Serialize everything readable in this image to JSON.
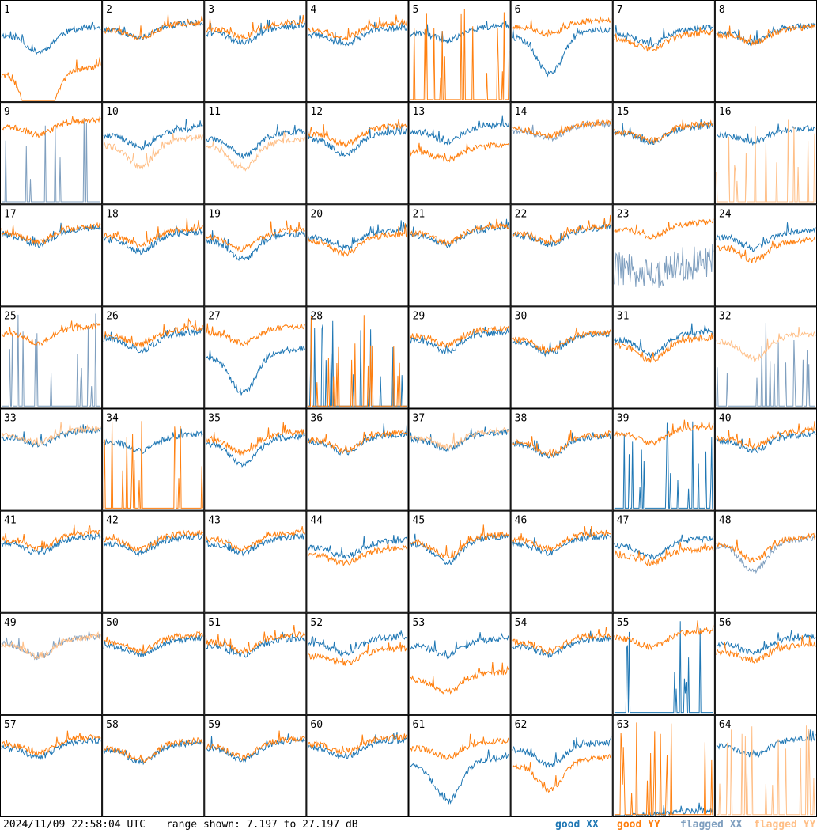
{
  "chart_data": {
    "type": "line",
    "grid": {
      "rows": 8,
      "cols": 8
    },
    "panels": [
      {
        "id": "1",
        "xx": "good",
        "yy": "good",
        "xx_level": 0.7,
        "yy_level": 0.3,
        "xx_dip": 0.2,
        "yy_dip": 0.7
      },
      {
        "id": "2",
        "xx": "good",
        "yy": "good",
        "xx_level": 0.75,
        "yy_level": 0.75,
        "xx_dip": 0.1,
        "yy_dip": 0.1
      },
      {
        "id": "3",
        "xx": "good",
        "yy": "good",
        "xx_level": 0.72,
        "yy_level": 0.76,
        "xx_dip": 0.12,
        "yy_dip": 0.1
      },
      {
        "id": "4",
        "xx": "good",
        "yy": "good",
        "xx_level": 0.7,
        "yy_level": 0.75,
        "xx_dip": 0.12,
        "yy_dip": 0.1
      },
      {
        "id": "5",
        "xx": "good",
        "yy": "good",
        "xx_level": 0.72,
        "yy_level": 0.02,
        "xx_dip": 0.1,
        "yy_dip": 0.0,
        "yy_spikes": true
      },
      {
        "id": "6",
        "xx": "good",
        "yy": "good",
        "xx_level": 0.68,
        "yy_level": 0.78,
        "xx_dip": 0.4,
        "yy_dip": 0.1
      },
      {
        "id": "7",
        "xx": "good",
        "yy": "good",
        "xx_level": 0.7,
        "yy_level": 0.65,
        "xx_dip": 0.12,
        "yy_dip": 0.12
      },
      {
        "id": "8",
        "xx": "good",
        "yy": "good",
        "xx_level": 0.72,
        "yy_level": 0.7,
        "xx_dip": 0.12,
        "yy_dip": 0.1
      },
      {
        "id": "9",
        "xx": "flagged",
        "yy": "good",
        "xx_level": 0.05,
        "yy_level": 0.8,
        "xx_dip": 0.0,
        "yy_dip": 0.1,
        "xx_spikes": true
      },
      {
        "id": "10",
        "xx": "good",
        "yy": "flagged",
        "xx_level": 0.72,
        "yy_level": 0.62,
        "xx_dip": 0.15,
        "yy_dip": 0.25
      },
      {
        "id": "11",
        "xx": "good",
        "yy": "flagged",
        "xx_level": 0.68,
        "yy_level": 0.6,
        "xx_dip": 0.2,
        "yy_dip": 0.25
      },
      {
        "id": "12",
        "xx": "good",
        "yy": "good",
        "xx_level": 0.68,
        "yy_level": 0.74,
        "xx_dip": 0.18,
        "yy_dip": 0.14
      },
      {
        "id": "13",
        "xx": "good",
        "yy": "good",
        "xx_level": 0.75,
        "yy_level": 0.55,
        "xx_dip": 0.12,
        "yy_dip": 0.1
      },
      {
        "id": "14",
        "xx": "flagged",
        "yy": "good",
        "xx_level": 0.76,
        "yy_level": 0.78,
        "xx_dip": 0.1,
        "yy_dip": 0.1
      },
      {
        "id": "15",
        "xx": "good",
        "yy": "good",
        "xx_level": 0.74,
        "yy_level": 0.76,
        "xx_dip": 0.12,
        "yy_dip": 0.12
      },
      {
        "id": "16",
        "xx": "good",
        "yy": "flagged",
        "xx_level": 0.72,
        "yy_level": 0.02,
        "xx_dip": 0.1,
        "yy_dip": 0.0,
        "yy_spikes": true
      },
      {
        "id": "17",
        "xx": "good",
        "yy": "good",
        "xx_level": 0.74,
        "yy_level": 0.76,
        "xx_dip": 0.12,
        "yy_dip": 0.12
      },
      {
        "id": "18",
        "xx": "good",
        "yy": "good",
        "xx_level": 0.7,
        "yy_level": 0.74,
        "xx_dip": 0.15,
        "yy_dip": 0.12
      },
      {
        "id": "19",
        "xx": "good",
        "yy": "good",
        "xx_level": 0.68,
        "yy_level": 0.72,
        "xx_dip": 0.22,
        "yy_dip": 0.14
      },
      {
        "id": "20",
        "xx": "good",
        "yy": "good",
        "xx_level": 0.72,
        "yy_level": 0.68,
        "xx_dip": 0.14,
        "yy_dip": 0.15
      },
      {
        "id": "21",
        "xx": "good",
        "yy": "good",
        "xx_level": 0.74,
        "yy_level": 0.76,
        "xx_dip": 0.12,
        "yy_dip": 0.12
      },
      {
        "id": "22",
        "xx": "good",
        "yy": "good",
        "xx_level": 0.74,
        "yy_level": 0.76,
        "xx_dip": 0.12,
        "yy_dip": 0.12
      },
      {
        "id": "23",
        "xx": "flagged",
        "yy": "good",
        "xx_level": 0.4,
        "yy_level": 0.8,
        "xx_dip": 0.1,
        "yy_dip": 0.1,
        "xx_noisy": true
      },
      {
        "id": "24",
        "xx": "good",
        "yy": "good",
        "xx_level": 0.72,
        "yy_level": 0.62,
        "xx_dip": 0.14,
        "yy_dip": 0.16
      },
      {
        "id": "25",
        "xx": "flagged",
        "yy": "good",
        "xx_level": 0.02,
        "yy_level": 0.78,
        "xx_dip": 0.0,
        "yy_dip": 0.12,
        "xx_spikes": true
      },
      {
        "id": "26",
        "xx": "good",
        "yy": "good",
        "xx_level": 0.72,
        "yy_level": 0.76,
        "xx_dip": 0.14,
        "yy_dip": 0.12
      },
      {
        "id": "27",
        "xx": "good",
        "yy": "good",
        "xx_level": 0.55,
        "yy_level": 0.78,
        "xx_dip": 0.4,
        "yy_dip": 0.12
      },
      {
        "id": "28",
        "xx": "good",
        "yy": "good",
        "xx_level": 0.02,
        "yy_level": 0.02,
        "xx_dip": 0.0,
        "yy_dip": 0.0,
        "xx_spikes": true,
        "yy_spikes": true
      },
      {
        "id": "29",
        "xx": "good",
        "yy": "good",
        "xx_level": 0.72,
        "yy_level": 0.76,
        "xx_dip": 0.15,
        "yy_dip": 0.12
      },
      {
        "id": "30",
        "xx": "good",
        "yy": "good",
        "xx_level": 0.7,
        "yy_level": 0.72,
        "xx_dip": 0.15,
        "yy_dip": 0.14
      },
      {
        "id": "31",
        "xx": "good",
        "yy": "good",
        "xx_level": 0.72,
        "yy_level": 0.66,
        "xx_dip": 0.18,
        "yy_dip": 0.18
      },
      {
        "id": "32",
        "xx": "flagged",
        "yy": "flagged",
        "xx_level": 0.02,
        "yy_level": 0.7,
        "xx_dip": 0.0,
        "yy_dip": 0.2,
        "xx_spikes": true
      },
      {
        "id": "33",
        "xx": "good",
        "yy": "flagged",
        "xx_level": 0.76,
        "yy_level": 0.78,
        "xx_dip": 0.1,
        "yy_dip": 0.1
      },
      {
        "id": "34",
        "xx": "good",
        "yy": "good",
        "xx_level": 0.72,
        "yy_level": 0.02,
        "xx_dip": 0.12,
        "yy_dip": 0.0,
        "yy_spikes": true
      },
      {
        "id": "35",
        "xx": "good",
        "yy": "good",
        "xx_level": 0.7,
        "yy_level": 0.74,
        "xx_dip": 0.24,
        "yy_dip": 0.16
      },
      {
        "id": "36",
        "xx": "good",
        "yy": "good",
        "xx_level": 0.72,
        "yy_level": 0.74,
        "xx_dip": 0.14,
        "yy_dip": 0.14
      },
      {
        "id": "37",
        "xx": "good",
        "yy": "flagged",
        "xx_level": 0.74,
        "yy_level": 0.76,
        "xx_dip": 0.12,
        "yy_dip": 0.12
      },
      {
        "id": "38",
        "xx": "good",
        "yy": "good",
        "xx_level": 0.7,
        "yy_level": 0.72,
        "xx_dip": 0.16,
        "yy_dip": 0.16
      },
      {
        "id": "39",
        "xx": "good",
        "yy": "good",
        "xx_level": 0.02,
        "yy_level": 0.8,
        "xx_dip": 0.0,
        "yy_dip": 0.12,
        "xx_spikes": true
      },
      {
        "id": "40",
        "xx": "good",
        "yy": "good",
        "xx_level": 0.72,
        "yy_level": 0.76,
        "xx_dip": 0.12,
        "yy_dip": 0.12
      },
      {
        "id": "41",
        "xx": "good",
        "yy": "good",
        "xx_level": 0.72,
        "yy_level": 0.76,
        "xx_dip": 0.12,
        "yy_dip": 0.12
      },
      {
        "id": "42",
        "xx": "good",
        "yy": "good",
        "xx_level": 0.72,
        "yy_level": 0.76,
        "xx_dip": 0.12,
        "yy_dip": 0.12
      },
      {
        "id": "43",
        "xx": "good",
        "yy": "good",
        "xx_level": 0.72,
        "yy_level": 0.76,
        "xx_dip": 0.12,
        "yy_dip": 0.12
      },
      {
        "id": "44",
        "xx": "good",
        "yy": "good",
        "xx_level": 0.68,
        "yy_level": 0.6,
        "xx_dip": 0.12,
        "yy_dip": 0.1
      },
      {
        "id": "45",
        "xx": "good",
        "yy": "good",
        "xx_level": 0.72,
        "yy_level": 0.74,
        "xx_dip": 0.22,
        "yy_dip": 0.18
      },
      {
        "id": "46",
        "xx": "good",
        "yy": "good",
        "xx_level": 0.72,
        "yy_level": 0.76,
        "xx_dip": 0.12,
        "yy_dip": 0.12
      },
      {
        "id": "47",
        "xx": "good",
        "yy": "good",
        "xx_level": 0.7,
        "yy_level": 0.6,
        "xx_dip": 0.14,
        "yy_dip": 0.1
      },
      {
        "id": "48",
        "xx": "flagged",
        "yy": "good",
        "xx_level": 0.7,
        "yy_level": 0.72,
        "xx_dip": 0.28,
        "yy_dip": 0.2
      },
      {
        "id": "49",
        "xx": "flagged",
        "yy": "flagged",
        "xx_level": 0.74,
        "yy_level": 0.74,
        "xx_dip": 0.16,
        "yy_dip": 0.16
      },
      {
        "id": "50",
        "xx": "good",
        "yy": "good",
        "xx_level": 0.72,
        "yy_level": 0.76,
        "xx_dip": 0.12,
        "yy_dip": 0.12
      },
      {
        "id": "51",
        "xx": "good",
        "yy": "good",
        "xx_level": 0.72,
        "yy_level": 0.76,
        "xx_dip": 0.12,
        "yy_dip": 0.12
      },
      {
        "id": "52",
        "xx": "good",
        "yy": "good",
        "xx_level": 0.74,
        "yy_level": 0.62,
        "xx_dip": 0.12,
        "yy_dip": 0.1
      },
      {
        "id": "53",
        "xx": "good",
        "yy": "good",
        "xx_level": 0.72,
        "yy_level": 0.38,
        "xx_dip": 0.12,
        "yy_dip": 0.15
      },
      {
        "id": "54",
        "xx": "good",
        "yy": "good",
        "xx_level": 0.72,
        "yy_level": 0.76,
        "xx_dip": 0.12,
        "yy_dip": 0.12
      },
      {
        "id": "55",
        "xx": "good",
        "yy": "good",
        "xx_level": 0.1,
        "yy_level": 0.8,
        "xx_dip": 0.0,
        "yy_dip": 0.12,
        "xx_spikes": true
      },
      {
        "id": "56",
        "xx": "good",
        "yy": "good",
        "xx_level": 0.74,
        "yy_level": 0.66,
        "xx_dip": 0.12,
        "yy_dip": 0.12
      },
      {
        "id": "57",
        "xx": "good",
        "yy": "good",
        "xx_level": 0.72,
        "yy_level": 0.76,
        "xx_dip": 0.12,
        "yy_dip": 0.12
      },
      {
        "id": "58",
        "xx": "good",
        "yy": "good",
        "xx_level": 0.7,
        "yy_level": 0.72,
        "xx_dip": 0.15,
        "yy_dip": 0.15
      },
      {
        "id": "59",
        "xx": "good",
        "yy": "good",
        "xx_level": 0.72,
        "yy_level": 0.74,
        "xx_dip": 0.14,
        "yy_dip": 0.14
      },
      {
        "id": "60",
        "xx": "good",
        "yy": "good",
        "xx_level": 0.72,
        "yy_level": 0.76,
        "xx_dip": 0.12,
        "yy_dip": 0.12
      },
      {
        "id": "61",
        "xx": "good",
        "yy": "good",
        "xx_level": 0.55,
        "yy_level": 0.72,
        "xx_dip": 0.4,
        "yy_dip": 0.12
      },
      {
        "id": "62",
        "xx": "good",
        "yy": "good",
        "xx_level": 0.7,
        "yy_level": 0.55,
        "xx_dip": 0.18,
        "yy_dip": 0.28
      },
      {
        "id": "63",
        "xx": "good",
        "yy": "good",
        "xx_level": 0.02,
        "yy_level": 0.02,
        "xx_dip": 0.0,
        "yy_dip": 0.0,
        "yy_spikes": true
      },
      {
        "id": "64",
        "xx": "good",
        "yy": "flagged",
        "xx_level": 0.74,
        "yy_level": 0.02,
        "xx_dip": 0.12,
        "yy_dip": 0.0,
        "yy_spikes": true
      }
    ],
    "colors": {
      "good_xx": "#1f77b4",
      "good_yy": "#ff7f0e",
      "flagged_xx": "#7f9fbf",
      "flagged_yy": "#ffbf87"
    }
  },
  "footer": {
    "timestamp": "2024/11/09 22:58:04 UTC",
    "range": "range shown: 7.197 to 27.197 dB",
    "legend": {
      "good_xx": "good XX",
      "good_yy": "good YY",
      "flagged_xx": "flagged XX",
      "flagged_yy": "flagged YY"
    }
  }
}
